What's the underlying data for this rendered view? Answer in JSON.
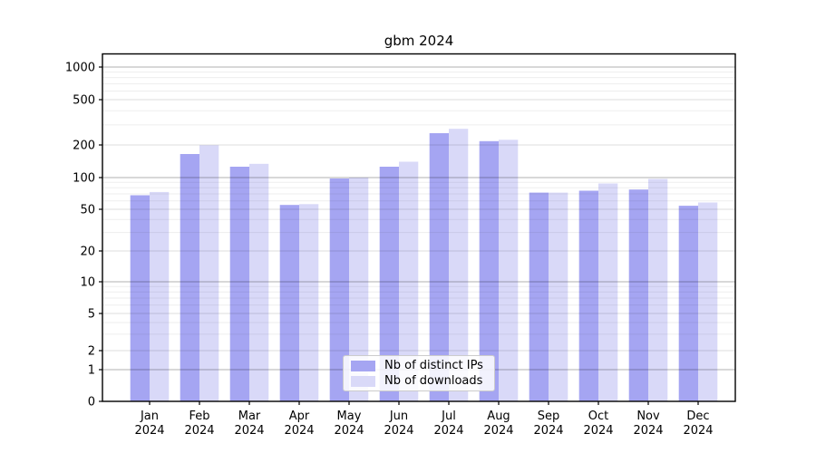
{
  "title": "gbm 2024",
  "chart_data": {
    "type": "bar",
    "title": "gbm 2024",
    "categories": [
      "Jan 2024",
      "Feb 2024",
      "Mar 2024",
      "Apr 2024",
      "May 2024",
      "Jun 2024",
      "Jul 2024",
      "Aug 2024",
      "Sep 2024",
      "Oct 2024",
      "Nov 2024",
      "Dec 2024"
    ],
    "series": [
      {
        "name": "Nb of distinct IPs",
        "color": "#a5a5f2",
        "values": [
          68,
          165,
          126,
          55,
          98,
          126,
          254,
          216,
          72,
          75,
          77,
          54
        ]
      },
      {
        "name": "Nb of downloads",
        "color": "#d9d9f8",
        "values": [
          73,
          199,
          134,
          56,
          100,
          140,
          277,
          222,
          72,
          88,
          97,
          58
        ]
      }
    ],
    "yscale": "symlog",
    "y_ticks": [
      0,
      1,
      2,
      5,
      10,
      20,
      50,
      100,
      200,
      500,
      1000
    ],
    "ylim": [
      0,
      1000
    ],
    "grid": true,
    "legend_position": "lower center",
    "xlabel": "",
    "ylabel": ""
  },
  "colors": {
    "bar_distinct_ips": "#a5a5f2",
    "bar_downloads": "#d9d9f8",
    "major_grid": "#b3b3b3",
    "mid_grid": "#dcdcdc",
    "minor_grid": "#ececec",
    "axis": "#000000"
  }
}
